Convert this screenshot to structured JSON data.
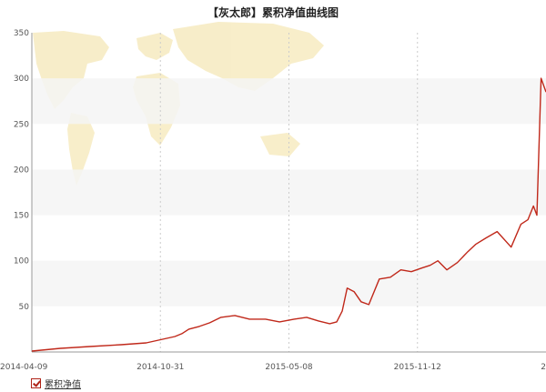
{
  "chart_data": {
    "type": "line",
    "title": "【灰太郎】累积净值曲线图",
    "xlabel": "",
    "ylabel": "",
    "x_tick_labels": [
      "2014-04-09",
      "2014-10-31",
      "2015-05-08",
      "2015-11-12",
      "2"
    ],
    "y_ticks": [
      50,
      100,
      150,
      200,
      250,
      300,
      350
    ],
    "ylim": [
      0,
      350
    ],
    "grid": "vertical dashed lines at date ticks, alternating horizontal bands",
    "legend_position": "bottom-left",
    "series": [
      {
        "name": "累积净值",
        "color": "#c0281a",
        "x": [
          "2014-04-09",
          "2014-05-20",
          "2014-07-01",
          "2014-08-15",
          "2014-09-20",
          "2014-10-31",
          "2014-11-10",
          "2014-11-20",
          "2014-12-05",
          "2014-12-20",
          "2015-01-05",
          "2015-01-25",
          "2015-02-15",
          "2015-03-10",
          "2015-03-30",
          "2015-04-20",
          "2015-05-08",
          "2015-05-25",
          "2015-06-10",
          "2015-06-20",
          "2015-06-28",
          "2015-07-05",
          "2015-07-15",
          "2015-07-25",
          "2015-08-05",
          "2015-08-20",
          "2015-09-05",
          "2015-09-20",
          "2015-10-05",
          "2015-10-20",
          "2015-11-01",
          "2015-11-12",
          "2015-11-25",
          "2015-12-10",
          "2015-12-25",
          "2016-01-05",
          "2016-01-20",
          "2016-02-05",
          "2016-02-25",
          "2016-03-10",
          "2016-03-20",
          "2016-03-28",
          "2016-04-02",
          "2016-04-08",
          "2016-04-15"
        ],
        "values": [
          1,
          4,
          6,
          8,
          10,
          17,
          20,
          25,
          28,
          32,
          38,
          40,
          36,
          36,
          33,
          36,
          38,
          34,
          31,
          33,
          45,
          70,
          66,
          55,
          52,
          80,
          82,
          90,
          88,
          92,
          95,
          100,
          90,
          98,
          110,
          118,
          125,
          132,
          115,
          140,
          145,
          160,
          150,
          300,
          285
        ]
      }
    ]
  },
  "legend": {
    "label": "累积净值"
  },
  "colors": {
    "line": "#c0281a",
    "band": "#f5f5f5",
    "grid": "#cccccc",
    "map": "#f7ecc4"
  }
}
